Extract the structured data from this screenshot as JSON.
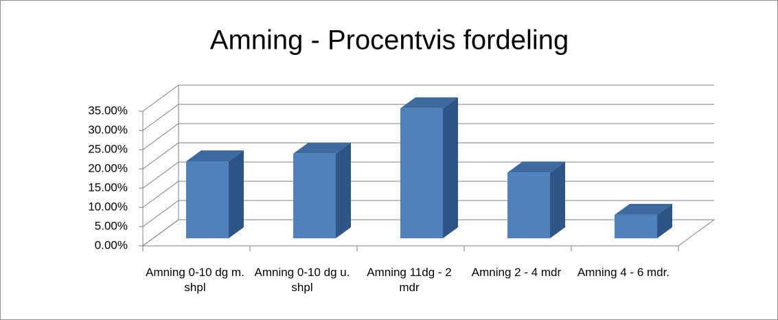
{
  "chart_data": {
    "type": "bar3d",
    "title": "Amning - Procentvis fordeling",
    "categories": [
      "Amning 0-10 dg m. shpl",
      "Amning 0-10 dg u. shpl",
      "Amning 11dg - 2 mdr",
      "Amning 2 - 4 mdr",
      "Amning 4 - 6 mdr."
    ],
    "values": [
      20,
      22,
      33.8,
      17.1,
      6.1
    ],
    "color": "#4f81bd",
    "ylim": [
      0,
      35
    ],
    "yticks": [
      {
        "value": 0,
        "label": "0.00%"
      },
      {
        "value": 5,
        "label": "5.00%"
      },
      {
        "value": 10,
        "label": "10.00%"
      },
      {
        "value": 15,
        "label": "15.00%"
      },
      {
        "value": 20,
        "label": "20.00%"
      },
      {
        "value": 25,
        "label": "25.00%"
      },
      {
        "value": 30,
        "label": "30.00%"
      },
      {
        "value": 35,
        "label": "35.00%"
      }
    ],
    "grid": true
  }
}
